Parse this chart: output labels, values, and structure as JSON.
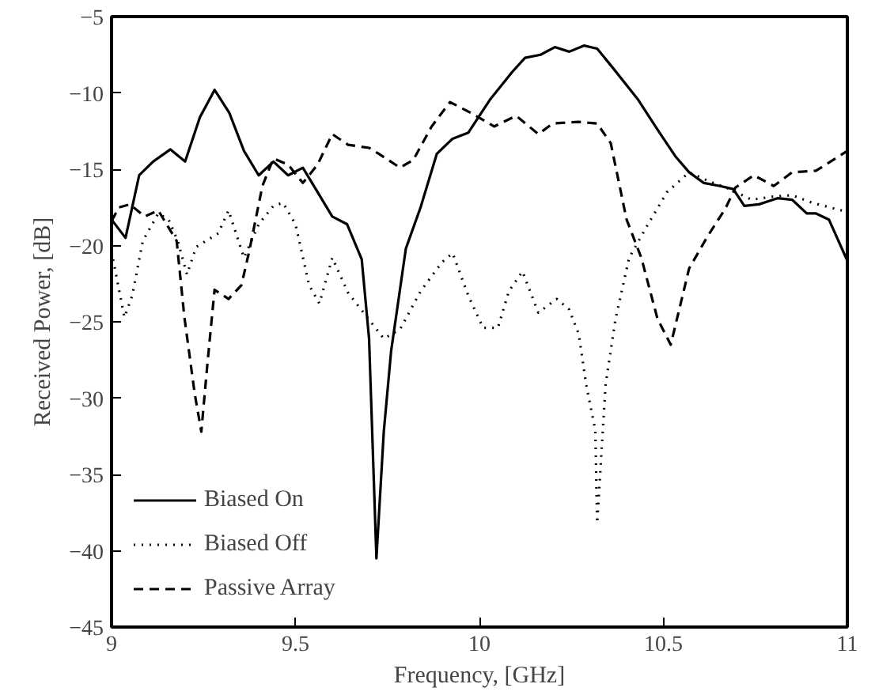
{
  "chart_data": {
    "type": "line",
    "xlabel": "Frequency, [GHz]",
    "ylabel": "Received Power, [dB]",
    "xlim": [
      9,
      11
    ],
    "ylim": [
      -45,
      -5
    ],
    "xticks": [
      9,
      9.5,
      10,
      10.5,
      11
    ],
    "yticks": [
      -45,
      -40,
      -35,
      -30,
      -25,
      -20,
      -15,
      -10,
      -5
    ],
    "grid": false,
    "legend": "bottom left",
    "marker": "none",
    "series": [
      {
        "name": "Biased On",
        "color": "#000000",
        "line_style": "solid",
        "x": [
          9.0,
          9.038,
          9.075,
          9.113,
          9.16,
          9.2,
          9.24,
          9.28,
          9.32,
          9.36,
          9.4,
          9.44,
          9.48,
          9.52,
          9.56,
          9.6,
          9.64,
          9.68,
          9.7,
          9.72,
          9.74,
          9.76,
          9.8,
          9.84,
          9.884,
          9.927,
          9.97,
          10.03,
          10.09,
          10.124,
          10.166,
          10.205,
          10.244,
          10.284,
          10.32,
          10.364,
          10.43,
          10.484,
          10.534,
          10.57,
          10.61,
          10.654,
          10.69,
          10.72,
          10.76,
          10.81,
          10.85,
          10.89,
          10.915,
          10.95,
          11.0
        ],
        "values": [
          -18.3,
          -19.5,
          -15.4,
          -14.5,
          -13.7,
          -14.5,
          -11.6,
          -9.8,
          -11.3,
          -13.8,
          -15.4,
          -14.5,
          -15.4,
          -14.9,
          -16.5,
          -18.1,
          -18.6,
          -20.9,
          -26.1,
          -40.5,
          -32.2,
          -26.9,
          -20.2,
          -17.5,
          -14.0,
          -13.0,
          -12.6,
          -10.4,
          -8.6,
          -7.7,
          -7.5,
          -7.0,
          -7.3,
          -6.9,
          -7.1,
          -8.4,
          -10.4,
          -12.4,
          -14.2,
          -15.2,
          -15.9,
          -16.1,
          -16.3,
          -17.4,
          -17.3,
          -16.9,
          -17.0,
          -17.9,
          -17.9,
          -18.3,
          -21.0
        ]
      },
      {
        "name": "Biased Off",
        "color": "#000000",
        "line_style": "dotted",
        "x": [
          9.0,
          9.035,
          9.056,
          9.085,
          9.127,
          9.155,
          9.18,
          9.205,
          9.23,
          9.29,
          9.318,
          9.36,
          9.4,
          9.44,
          9.466,
          9.5,
          9.537,
          9.565,
          9.6,
          9.643,
          9.685,
          9.74,
          9.784,
          9.84,
          9.898,
          9.927,
          9.97,
          10.01,
          10.05,
          10.08,
          10.117,
          10.16,
          10.21,
          10.244,
          10.27,
          10.29,
          10.315,
          10.32,
          10.343,
          10.37,
          10.407,
          10.456,
          10.51,
          10.57,
          10.625,
          10.68,
          10.74,
          10.795,
          10.85,
          10.905,
          11.0
        ],
        "values": [
          -20.4,
          -24.7,
          -23.3,
          -19.7,
          -17.9,
          -18.3,
          -19.7,
          -21.9,
          -20.1,
          -19.2,
          -17.7,
          -20.8,
          -18.6,
          -17.4,
          -17.2,
          -18.6,
          -22.6,
          -23.8,
          -20.8,
          -23.1,
          -24.4,
          -26.1,
          -25.5,
          -23.0,
          -21.1,
          -20.5,
          -23.3,
          -25.4,
          -25.4,
          -23.0,
          -21.7,
          -24.4,
          -23.5,
          -24.2,
          -25.8,
          -29.1,
          -32.1,
          -38.2,
          -29.1,
          -24.8,
          -20.8,
          -18.7,
          -16.5,
          -15.2,
          -15.8,
          -16.3,
          -17.0,
          -16.8,
          -16.7,
          -17.2,
          -17.8
        ]
      },
      {
        "name": "Passive Array",
        "color": "#000000",
        "line_style": "dashed",
        "x": [
          9.0,
          9.02,
          9.05,
          9.09,
          9.127,
          9.177,
          9.198,
          9.226,
          9.244,
          9.26,
          9.28,
          9.318,
          9.353,
          9.374,
          9.41,
          9.44,
          9.48,
          9.52,
          9.56,
          9.6,
          9.643,
          9.7,
          9.727,
          9.784,
          9.82,
          9.87,
          9.92,
          9.976,
          10.04,
          10.1,
          10.16,
          10.2,
          10.27,
          10.32,
          10.357,
          10.4,
          10.44,
          10.484,
          10.52,
          10.57,
          10.62,
          10.668,
          10.696,
          10.746,
          10.8,
          10.85,
          10.915,
          11.0
        ],
        "values": [
          -18.4,
          -17.5,
          -17.3,
          -18.1,
          -17.7,
          -19.7,
          -24.7,
          -29.7,
          -32.2,
          -27.9,
          -22.9,
          -23.5,
          -22.6,
          -20.4,
          -16.1,
          -14.3,
          -14.7,
          -15.9,
          -14.7,
          -12.7,
          -13.4,
          -13.6,
          -14.0,
          -14.9,
          -14.4,
          -12.2,
          -10.6,
          -11.3,
          -12.2,
          -11.5,
          -12.7,
          -12.0,
          -11.9,
          -12.0,
          -13.3,
          -18.3,
          -20.8,
          -24.8,
          -26.5,
          -21.5,
          -19.4,
          -17.6,
          -16.2,
          -15.4,
          -16.1,
          -15.2,
          -15.1,
          -13.8
        ]
      }
    ]
  }
}
